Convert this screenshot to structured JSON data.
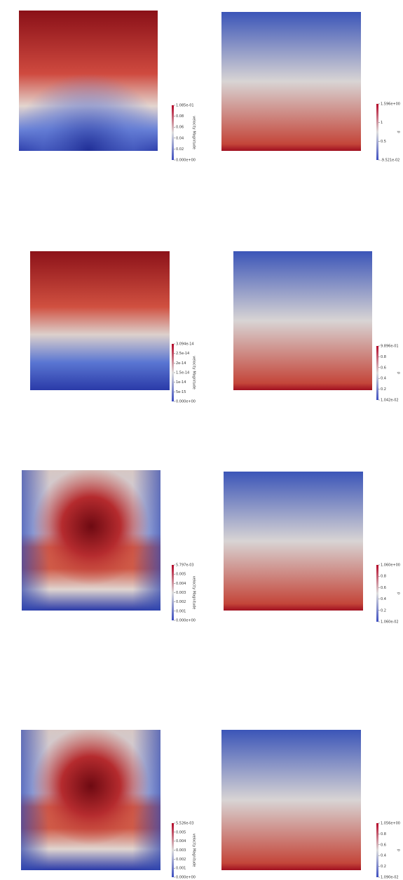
{
  "panels": [
    {
      "colorbar": {
        "title": "velocity Magnitude",
        "labels": [
          "1.085e-01",
          "0.08",
          "0.06",
          "0.04",
          "0.02",
          "0.000e+00"
        ]
      }
    },
    {
      "colorbar": {
        "title": "p",
        "labels": [
          "1.596e+00",
          "1",
          "0.5",
          "-9.521e-02"
        ]
      }
    },
    {
      "colorbar": {
        "title": "velocity Magnitude",
        "labels": [
          "3.094e-14",
          "2.5e-14",
          "2e-14",
          "1.5e-14",
          "1e-14",
          "5e-15",
          "0.000e+00"
        ]
      }
    },
    {
      "colorbar": {
        "title": "p",
        "labels": [
          "9.896e-01",
          "0.8",
          "0.6",
          "0.4",
          "0.2",
          "1.042e-02"
        ]
      }
    },
    {
      "colorbar": {
        "title": "velocity Magnitude",
        "labels": [
          "5.797e-03",
          "0.005",
          "0.004",
          "0.003",
          "0.002",
          "0.001",
          "0.000e+00"
        ]
      }
    },
    {
      "colorbar": {
        "title": "p",
        "labels": [
          "1.060e+00",
          "0.8",
          "0.6",
          "0.4",
          "0.2",
          "1.060e-02"
        ]
      }
    },
    {
      "colorbar": {
        "title": "velocity Magnitude",
        "labels": [
          "5.526e-03",
          "0.005",
          "0.004",
          "0.003",
          "0.002",
          "0.001",
          "0.000e+00"
        ]
      }
    },
    {
      "colorbar": {
        "title": "p",
        "labels": [
          "1.056e+00",
          "0.8",
          "0.6",
          "0.4",
          "0.2",
          "1.090e-02"
        ]
      }
    }
  ]
}
